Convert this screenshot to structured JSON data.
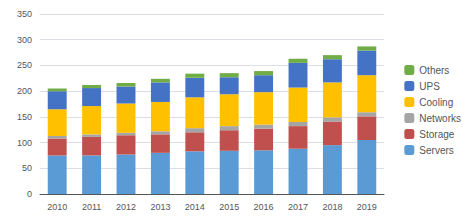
{
  "chart_data": {
    "type": "bar",
    "stacked": true,
    "categories": [
      "2010",
      "2011",
      "2012",
      "2013",
      "2014",
      "2015",
      "2016",
      "2017",
      "2018",
      "2019"
    ],
    "series": [
      {
        "name": "Servers",
        "color": "#5B9BD5",
        "values": [
          75,
          75,
          77,
          80,
          83,
          84,
          85,
          88,
          95,
          105
        ]
      },
      {
        "name": "Storage",
        "color": "#C0504D",
        "values": [
          33,
          36,
          37,
          36,
          37,
          40,
          42,
          44,
          46,
          46
        ]
      },
      {
        "name": "Networks",
        "color": "#A5A5A5",
        "values": [
          5,
          5,
          5,
          6,
          8,
          8,
          8,
          8,
          8,
          8
        ]
      },
      {
        "name": "Cooling",
        "color": "#FFC000",
        "values": [
          52,
          55,
          57,
          57,
          60,
          62,
          63,
          67,
          68,
          72
        ]
      },
      {
        "name": "UPS",
        "color": "#4472C4",
        "values": [
          35,
          35,
          33,
          38,
          38,
          33,
          33,
          48,
          45,
          48
        ]
      },
      {
        "name": "Others",
        "color": "#70AD47",
        "values": [
          5,
          6,
          7,
          7,
          8,
          8,
          8,
          8,
          8,
          8
        ]
      }
    ],
    "ylim": [
      0,
      350
    ],
    "yticks": [
      0,
      50,
      100,
      150,
      200,
      250,
      300,
      350
    ],
    "grid": true,
    "legend": "right"
  }
}
